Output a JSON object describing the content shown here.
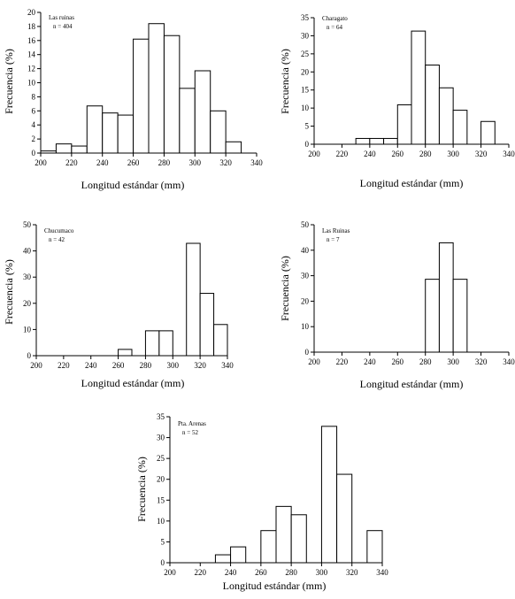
{
  "chart_data": [
    {
      "type": "bar",
      "annotation": [
        "Las ruinas",
        "n = 404"
      ],
      "xlabel": "Longitud estándar (mm)",
      "ylabel": "Frecuencia (%)",
      "xlim": [
        200,
        340
      ],
      "ylim": [
        0,
        20
      ],
      "xticks": [
        "200",
        "220",
        "240",
        "260",
        "280",
        "300",
        "320",
        "340"
      ],
      "yticks": [
        "0",
        "2",
        "4",
        "6",
        "8",
        "10",
        "12",
        "14",
        "16",
        "18",
        "20"
      ],
      "bin_width": 10,
      "bins": [
        {
          "start": 200,
          "value": 0.3
        },
        {
          "start": 210,
          "value": 1.3
        },
        {
          "start": 220,
          "value": 1.0
        },
        {
          "start": 230,
          "value": 6.7
        },
        {
          "start": 240,
          "value": 5.7
        },
        {
          "start": 250,
          "value": 5.4
        },
        {
          "start": 260,
          "value": 16.2
        },
        {
          "start": 270,
          "value": 18.4
        },
        {
          "start": 280,
          "value": 16.7
        },
        {
          "start": 290,
          "value": 9.2
        },
        {
          "start": 300,
          "value": 11.7
        },
        {
          "start": 310,
          "value": 6.0
        },
        {
          "start": 320,
          "value": 1.6
        }
      ]
    },
    {
      "type": "bar",
      "annotation": [
        "Charagato",
        "n = 64"
      ],
      "xlabel": "Longitud estándar (mm)",
      "ylabel": "Frecuencia (%)",
      "xlim": [
        200,
        340
      ],
      "ylim": [
        0,
        35
      ],
      "xticks": [
        "200",
        "220",
        "240",
        "260",
        "280",
        "300",
        "320",
        "340"
      ],
      "yticks": [
        "0",
        "5",
        "10",
        "15",
        "20",
        "25",
        "30",
        "35"
      ],
      "bin_width": 10,
      "bins": [
        {
          "start": 230,
          "value": 1.6
        },
        {
          "start": 240,
          "value": 1.6
        },
        {
          "start": 250,
          "value": 1.6
        },
        {
          "start": 260,
          "value": 10.9
        },
        {
          "start": 270,
          "value": 31.3
        },
        {
          "start": 280,
          "value": 21.9
        },
        {
          "start": 290,
          "value": 15.6
        },
        {
          "start": 300,
          "value": 9.4
        },
        {
          "start": 320,
          "value": 6.3
        }
      ]
    },
    {
      "type": "bar",
      "annotation": [
        "Chucumaco",
        "n = 42"
      ],
      "xlabel": "Longitud estándar (mm)",
      "ylabel": "Frecuencia (%)",
      "xlim": [
        200,
        340
      ],
      "ylim": [
        0,
        50
      ],
      "xticks": [
        "200",
        "220",
        "240",
        "260",
        "280",
        "300",
        "320",
        "340"
      ],
      "yticks": [
        "0",
        "10",
        "20",
        "30",
        "40",
        "50"
      ],
      "bin_width": 10,
      "bins": [
        {
          "start": 260,
          "value": 2.4
        },
        {
          "start": 280,
          "value": 9.5
        },
        {
          "start": 290,
          "value": 9.5
        },
        {
          "start": 310,
          "value": 42.9
        },
        {
          "start": 320,
          "value": 23.8
        },
        {
          "start": 330,
          "value": 11.9
        }
      ]
    },
    {
      "type": "bar",
      "annotation": [
        "Las Ruinas",
        "n = 7"
      ],
      "xlabel": "Longitud estándar (mm)",
      "ylabel": "Frecuencia (%)",
      "xlim": [
        200,
        340
      ],
      "ylim": [
        0,
        50
      ],
      "xticks": [
        "200",
        "220",
        "240",
        "260",
        "280",
        "300",
        "320",
        "340"
      ],
      "yticks": [
        "0",
        "10",
        "20",
        "30",
        "40",
        "50"
      ],
      "bin_width": 10,
      "bins": [
        {
          "start": 280,
          "value": 28.6
        },
        {
          "start": 290,
          "value": 42.9
        },
        {
          "start": 300,
          "value": 28.6
        }
      ]
    },
    {
      "type": "bar",
      "annotation": [
        "Pta. Arenas",
        "n = 52"
      ],
      "xlabel": "Longitud estándar (mm)",
      "ylabel": "Frecuencia (%)",
      "xlim": [
        200,
        340
      ],
      "ylim": [
        0,
        35
      ],
      "xticks": [
        "200",
        "220",
        "240",
        "260",
        "280",
        "300",
        "320",
        "340"
      ],
      "yticks": [
        "0",
        "5",
        "10",
        "15",
        "20",
        "25",
        "30",
        "35"
      ],
      "bin_width": 10,
      "bins": [
        {
          "start": 230,
          "value": 1.9
        },
        {
          "start": 240,
          "value": 3.8
        },
        {
          "start": 260,
          "value": 7.7
        },
        {
          "start": 270,
          "value": 13.5
        },
        {
          "start": 280,
          "value": 11.5
        },
        {
          "start": 300,
          "value": 32.7
        },
        {
          "start": 310,
          "value": 21.2
        },
        {
          "start": 330,
          "value": 7.7
        }
      ]
    }
  ]
}
